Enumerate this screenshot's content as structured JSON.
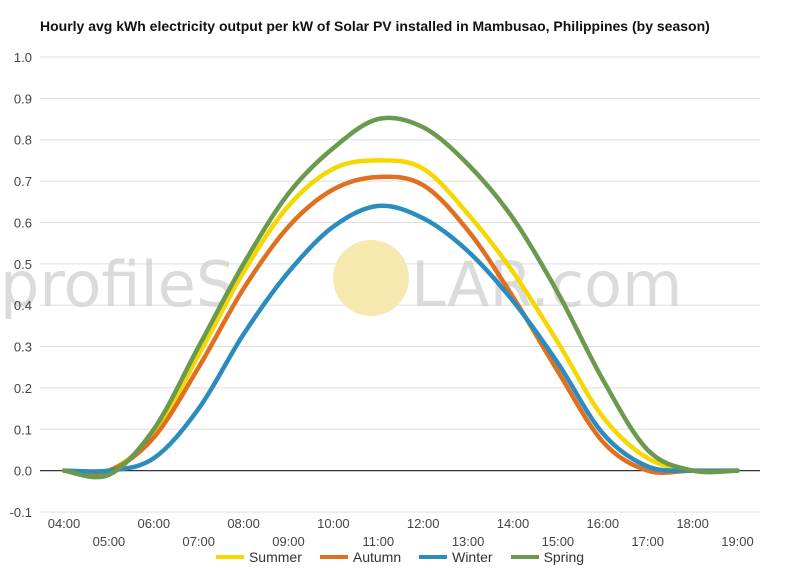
{
  "chart_data": {
    "type": "line",
    "title": "Hourly avg kWh electricity output per kW of Solar PV installed in Mambusao, Philippines (by season)",
    "xlabel": "",
    "ylabel": "",
    "categories": [
      "04:00",
      "05:00",
      "06:00",
      "07:00",
      "08:00",
      "09:00",
      "10:00",
      "11:00",
      "12:00",
      "13:00",
      "14:00",
      "15:00",
      "16:00",
      "17:00",
      "18:00",
      "19:00"
    ],
    "ylim": [
      -0.1,
      1.0
    ],
    "y_ticks": [
      "-0.1",
      "0.0",
      "0.1",
      "0.2",
      "0.3",
      "0.4",
      "0.5",
      "0.6",
      "0.7",
      "0.8",
      "0.9",
      "1.0"
    ],
    "grid": true,
    "legend_position": "bottom",
    "series": [
      {
        "name": "Summer",
        "color": "#f5d800",
        "values": [
          0.0,
          0.0,
          0.09,
          0.28,
          0.48,
          0.64,
          0.73,
          0.75,
          0.73,
          0.62,
          0.48,
          0.31,
          0.13,
          0.03,
          0.0,
          0.0
        ]
      },
      {
        "name": "Autumn",
        "color": "#e07020",
        "values": [
          0.0,
          0.0,
          0.08,
          0.25,
          0.44,
          0.59,
          0.68,
          0.71,
          0.69,
          0.58,
          0.42,
          0.24,
          0.07,
          0.0,
          0.0,
          0.0
        ]
      },
      {
        "name": "Winter",
        "color": "#2b8cbe",
        "values": [
          0.0,
          0.0,
          0.03,
          0.15,
          0.33,
          0.48,
          0.59,
          0.64,
          0.61,
          0.53,
          0.41,
          0.26,
          0.09,
          0.01,
          0.0,
          0.0
        ]
      },
      {
        "name": "Spring",
        "color": "#6b9a4e",
        "values": [
          0.0,
          -0.01,
          0.1,
          0.3,
          0.5,
          0.67,
          0.78,
          0.85,
          0.83,
          0.74,
          0.61,
          0.43,
          0.22,
          0.05,
          0.0,
          0.0
        ]
      }
    ]
  },
  "watermark": {
    "text_left": "profileS",
    "text_right": "LAR.com",
    "sun_color": "#f5e9b0"
  }
}
